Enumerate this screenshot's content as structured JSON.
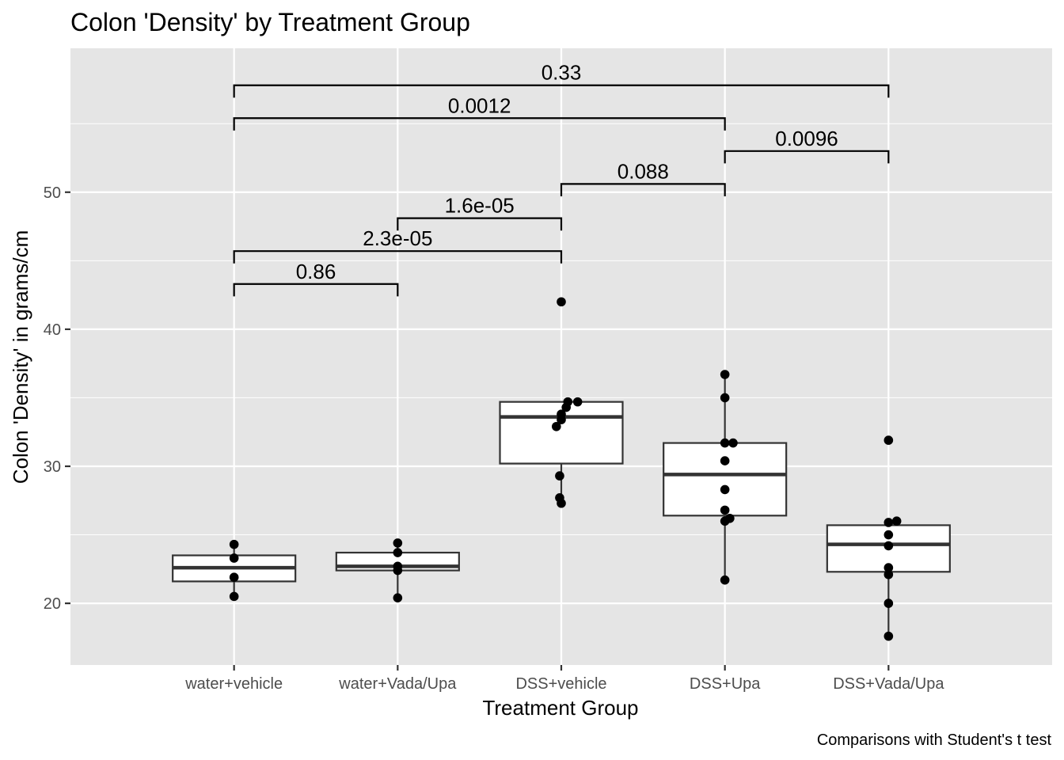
{
  "chart_data": {
    "type": "box",
    "title": "Colon 'Density' by Treatment Group",
    "xlabel": "Treatment Group",
    "ylabel": "Colon 'Density' in grams/cm",
    "caption": "Comparisons with Student's t test",
    "categories": [
      "water+vehicle",
      "water+Vada/Upa",
      "DSS+vehicle",
      "DSS+Upa",
      "DSS+Vada/Upa"
    ],
    "ylim": [
      15.5,
      60.5
    ],
    "yticks": [
      20,
      30,
      40,
      50
    ],
    "ytick_labels": [
      "20",
      "30",
      "40",
      "50"
    ],
    "grid": true,
    "boxes": [
      {
        "q1": 21.6,
        "median": 22.6,
        "q3": 23.5,
        "whisker_low": 20.5,
        "whisker_high": 24.3
      },
      {
        "q1": 22.4,
        "median": 22.7,
        "q3": 23.7,
        "whisker_low": 20.4,
        "whisker_high": 24.4
      },
      {
        "q1": 30.2,
        "median": 33.6,
        "q3": 34.7,
        "whisker_low": 27.3,
        "whisker_high": 34.7
      },
      {
        "q1": 26.4,
        "median": 29.4,
        "q3": 31.7,
        "whisker_low": 21.7,
        "whisker_high": 36.7
      },
      {
        "q1": 22.3,
        "median": 24.3,
        "q3": 25.7,
        "whisker_low": 17.6,
        "whisker_high": 26.0
      }
    ],
    "points": [
      [
        24.3,
        23.3,
        21.9,
        20.5
      ],
      [
        24.4,
        23.7,
        22.7,
        22.4,
        20.4
      ],
      [
        42.0,
        34.7,
        34.7,
        34.3,
        33.8,
        33.4,
        32.9,
        29.3,
        27.7,
        27.3
      ],
      [
        36.7,
        35.0,
        31.7,
        31.7,
        30.4,
        28.3,
        26.8,
        26.2,
        26.0,
        21.7
      ],
      [
        31.9,
        26.0,
        25.9,
        25.0,
        24.2,
        22.6,
        22.1,
        20.0,
        17.6
      ]
    ],
    "point_offsets": [
      [
        0,
        0,
        0,
        0
      ],
      [
        0,
        0,
        0,
        0,
        0
      ],
      [
        0,
        0.04,
        0.1,
        0.03,
        0,
        0,
        -0.03,
        -0.01,
        -0.01,
        0
      ],
      [
        0,
        0,
        0,
        0.05,
        0,
        0,
        0,
        0.03,
        0,
        0
      ],
      [
        0,
        0.05,
        0,
        0,
        0,
        0,
        0,
        0,
        0,
        0
      ]
    ],
    "comparisons": [
      {
        "from": 0,
        "to": 1,
        "y": 43.3,
        "label": "0.86"
      },
      {
        "from": 0,
        "to": 2,
        "y": 45.7,
        "label": "2.3e-05"
      },
      {
        "from": 1,
        "to": 2,
        "y": 48.1,
        "label": "1.6e-05"
      },
      {
        "from": 2,
        "to": 3,
        "y": 50.6,
        "label": "0.088"
      },
      {
        "from": 3,
        "to": 4,
        "y": 53.0,
        "label": "0.0096"
      },
      {
        "from": 0,
        "to": 3,
        "y": 55.4,
        "label": "0.0012"
      },
      {
        "from": 0,
        "to": 4,
        "y": 57.8,
        "label": "0.33"
      }
    ],
    "colors": {
      "panel_background": "#e5e5e5",
      "grid": "#ffffff",
      "box_fill": "#ffffff",
      "box_line": "#333333",
      "point": "#000000",
      "bracket": "#000000"
    }
  }
}
